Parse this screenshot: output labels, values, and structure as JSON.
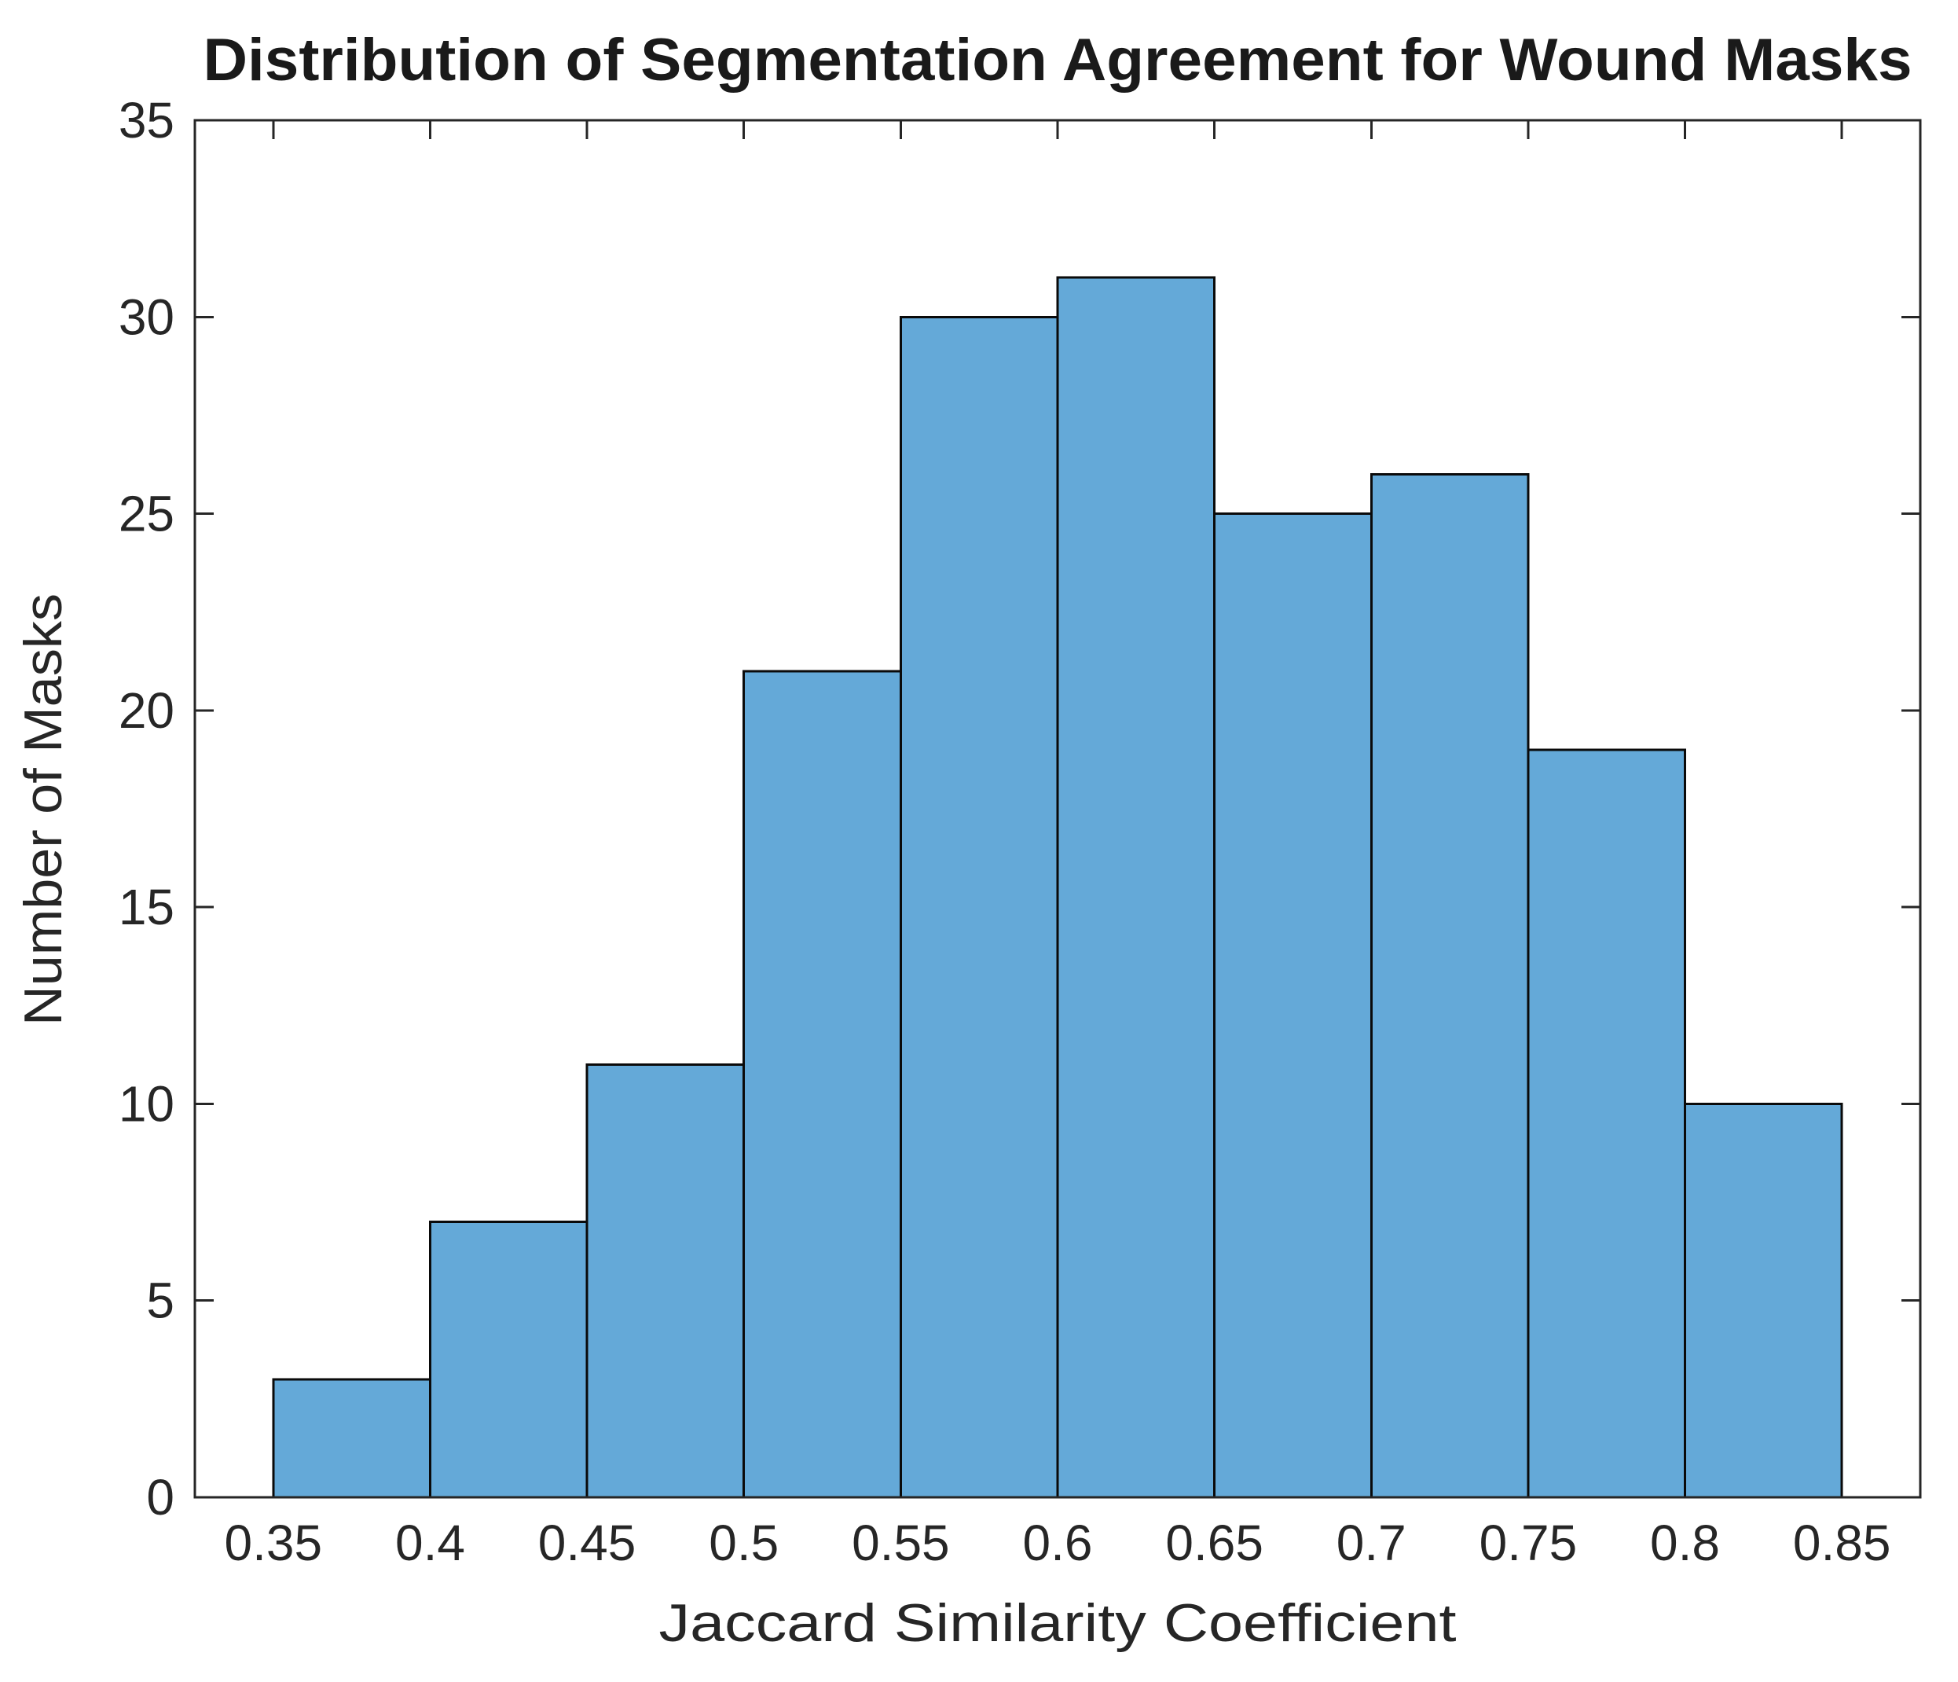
{
  "chart_data": {
    "type": "bar",
    "subtype": "histogram",
    "title": "Distribution of Segmentation Agreement for Wound Masks",
    "xlabel": "Jaccard Similarity Coefficient",
    "ylabel": "Number of Masks",
    "bin_edges": [
      0.35,
      0.4,
      0.45,
      0.5,
      0.55,
      0.6,
      0.65,
      0.7,
      0.75,
      0.8,
      0.85
    ],
    "counts": [
      3,
      7,
      11,
      21,
      30,
      31,
      25,
      26,
      19,
      10
    ],
    "x_ticks": [
      0.35,
      0.4,
      0.45,
      0.5,
      0.55,
      0.6,
      0.65,
      0.7,
      0.75,
      0.8,
      0.85
    ],
    "x_tick_labels": [
      "0.35",
      "0.4",
      "0.45",
      "0.5",
      "0.55",
      "0.6",
      "0.65",
      "0.7",
      "0.75",
      "0.8",
      "0.85"
    ],
    "y_ticks": [
      0,
      5,
      10,
      15,
      20,
      25,
      30,
      35
    ],
    "y_tick_labels": [
      "0",
      "5",
      "10",
      "15",
      "20",
      "25",
      "30",
      "35"
    ],
    "xlim": [
      0.325,
      0.875
    ],
    "ylim": [
      0,
      35
    ],
    "grid": false,
    "legend": null,
    "box": true,
    "tick_direction": "in",
    "colors": {
      "bar_fill": "#64A9D8",
      "bar_edge": "#0a0a0a",
      "axis": "#262626",
      "text": "#262626",
      "background": "#ffffff"
    }
  }
}
